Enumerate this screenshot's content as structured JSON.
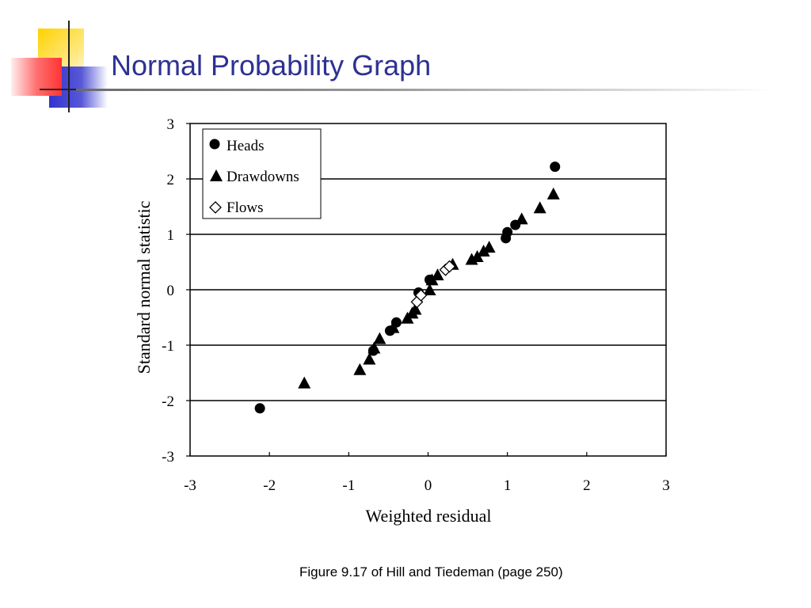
{
  "slide": {
    "title": "Normal Probability Graph",
    "caption": "Figure 9.17 of Hill and Tiedeman (page 250)"
  },
  "colors": {
    "title": "#2e3192",
    "deco_yellow": "#ffd200",
    "deco_red": "#ff3333",
    "deco_blue": "#3333cc"
  },
  "chart_data": {
    "type": "scatter",
    "xlabel": "Weighted residual",
    "ylabel": "Standard normal statistic",
    "xlim": [
      -3,
      3
    ],
    "ylim": [
      -3,
      3
    ],
    "xticks": [
      "-3",
      "-2",
      "-1",
      "0",
      "1",
      "2",
      "3"
    ],
    "yticks": [
      "3",
      "2",
      "1",
      "0",
      "-1",
      "-2",
      "-3"
    ],
    "grid": "horizontal",
    "legend_position": "top-left",
    "series": [
      {
        "name": "Heads",
        "marker": "circle",
        "points": [
          [
            -2.12,
            -2.14
          ],
          [
            -0.69,
            -1.1
          ],
          [
            -0.48,
            -0.74
          ],
          [
            -0.4,
            -0.59
          ],
          [
            -0.12,
            -0.05
          ],
          [
            0.02,
            0.18
          ],
          [
            0.98,
            0.93
          ],
          [
            1.0,
            1.04
          ],
          [
            1.1,
            1.17
          ],
          [
            1.6,
            2.22
          ]
        ]
      },
      {
        "name": "Drawdowns",
        "marker": "triangle",
        "points": [
          [
            -1.56,
            -1.68
          ],
          [
            -0.86,
            -1.44
          ],
          [
            -0.74,
            -1.25
          ],
          [
            -0.68,
            -1.05
          ],
          [
            -0.61,
            -0.88
          ],
          [
            -0.44,
            -0.68
          ],
          [
            -0.26,
            -0.51
          ],
          [
            -0.2,
            -0.42
          ],
          [
            -0.16,
            -0.35
          ],
          [
            0.02,
            0.0
          ],
          [
            0.05,
            0.18
          ],
          [
            0.12,
            0.27
          ],
          [
            0.31,
            0.46
          ],
          [
            0.55,
            0.55
          ],
          [
            0.62,
            0.6
          ],
          [
            0.7,
            0.7
          ],
          [
            0.77,
            0.77
          ],
          [
            1.18,
            1.28
          ],
          [
            1.41,
            1.48
          ],
          [
            1.58,
            1.73
          ]
        ]
      },
      {
        "name": "Flows",
        "marker": "diamond",
        "points": [
          [
            -0.14,
            -0.22
          ],
          [
            -0.09,
            -0.1
          ],
          [
            0.22,
            0.36
          ],
          [
            0.27,
            0.42
          ]
        ]
      }
    ]
  }
}
